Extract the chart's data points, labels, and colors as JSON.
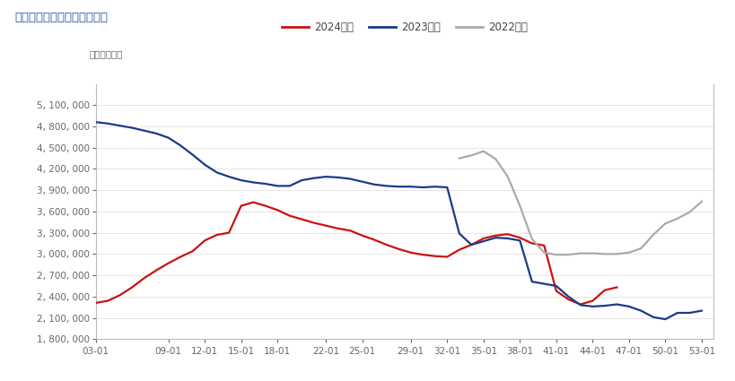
{
  "title": "原木：港口库存：中国（周）",
  "unit_label": "单位：立方米",
  "legend": [
    "2024年度",
    "2023年度",
    "2022年度"
  ],
  "colors": [
    "#cc1111",
    "#1a3a8a",
    "#aaaaaa"
  ],
  "ylim": [
    1800000,
    5400000
  ],
  "yticks": [
    1800000,
    2100000,
    2400000,
    2700000,
    3000000,
    3300000,
    3600000,
    3900000,
    4200000,
    4500000,
    4800000,
    5100000
  ],
  "xtick_positions": [
    3,
    9,
    12,
    15,
    18,
    22,
    25,
    29,
    32,
    35,
    38,
    41,
    44,
    47,
    50,
    53
  ],
  "xtick_labels": [
    "03-01",
    "09-01",
    "12-01",
    "15-01",
    "18-01",
    "22-01",
    "25-01",
    "29-01",
    "32-01",
    "35-01",
    "38-01",
    "41-01",
    "44-01",
    "47-01",
    "50-01",
    "53-01"
  ],
  "background": "#ffffff",
  "plot_bg": "#ffffff",
  "xlim": [
    3,
    54
  ],
  "series_2024": {
    "x": [
      3,
      4,
      5,
      6,
      7,
      8,
      9,
      10,
      11,
      12,
      13,
      14,
      15,
      16,
      17,
      18,
      19,
      20,
      21,
      22,
      23,
      24,
      25,
      26,
      27,
      28,
      29,
      30,
      31,
      32,
      33,
      34,
      35,
      36,
      37,
      38,
      39,
      40,
      41,
      42,
      43,
      44,
      45,
      46
    ],
    "y": [
      2310000,
      2340000,
      2420000,
      2530000,
      2660000,
      2770000,
      2870000,
      2960000,
      3040000,
      3190000,
      3270000,
      3300000,
      3680000,
      3730000,
      3680000,
      3620000,
      3540000,
      3490000,
      3440000,
      3400000,
      3360000,
      3330000,
      3260000,
      3200000,
      3130000,
      3070000,
      3020000,
      2990000,
      2970000,
      2960000,
      3060000,
      3130000,
      3220000,
      3260000,
      3280000,
      3230000,
      3150000,
      3120000,
      2480000,
      2360000,
      2290000,
      2340000,
      2490000,
      2530000
    ]
  },
  "series_2023": {
    "x": [
      3,
      4,
      5,
      6,
      7,
      8,
      9,
      10,
      11,
      12,
      13,
      14,
      15,
      16,
      17,
      18,
      19,
      20,
      21,
      22,
      23,
      24,
      25,
      26,
      27,
      28,
      29,
      30,
      31,
      32,
      33,
      34,
      35,
      36,
      37,
      38,
      39,
      40,
      41,
      42,
      43,
      44,
      45,
      46,
      47,
      48,
      49,
      50,
      51,
      52,
      53
    ],
    "y": [
      4860000,
      4840000,
      4810000,
      4780000,
      4740000,
      4700000,
      4640000,
      4530000,
      4400000,
      4260000,
      4150000,
      4090000,
      4040000,
      4010000,
      3990000,
      3960000,
      3960000,
      4040000,
      4070000,
      4090000,
      4080000,
      4060000,
      4020000,
      3980000,
      3960000,
      3950000,
      3950000,
      3940000,
      3950000,
      3940000,
      3290000,
      3130000,
      3180000,
      3230000,
      3220000,
      3190000,
      2610000,
      2580000,
      2550000,
      2400000,
      2280000,
      2260000,
      2270000,
      2290000,
      2260000,
      2200000,
      2110000,
      2080000,
      2170000,
      2170000,
      2200000
    ]
  },
  "series_2022": {
    "x": [
      33,
      34,
      35,
      36,
      37,
      38,
      39,
      40,
      41,
      42,
      43,
      44,
      45,
      46,
      47,
      48,
      49,
      50,
      51,
      52,
      53
    ],
    "y": [
      4350000,
      4390000,
      4450000,
      4340000,
      4090000,
      3680000,
      3210000,
      3020000,
      2990000,
      2990000,
      3010000,
      3010000,
      3000000,
      3000000,
      3020000,
      3080000,
      3270000,
      3430000,
      3500000,
      3590000,
      3740000
    ]
  }
}
